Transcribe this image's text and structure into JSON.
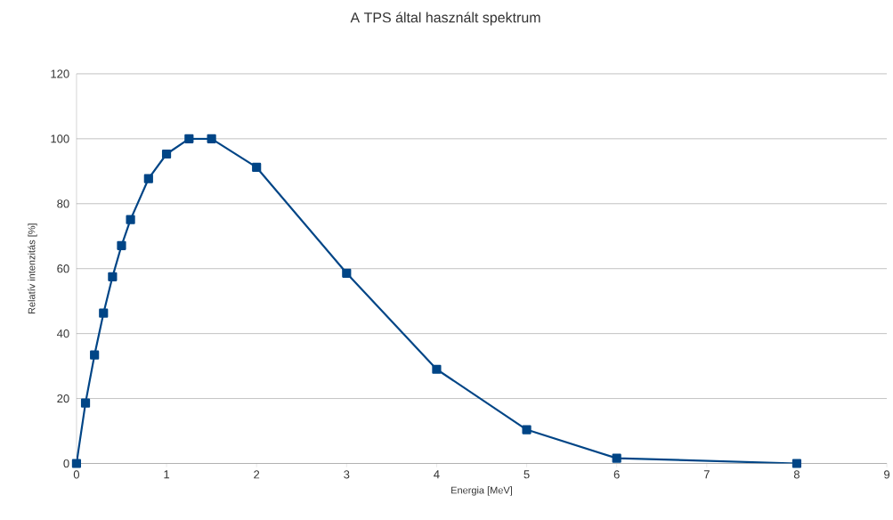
{
  "chart_data": {
    "type": "line",
    "title": "A TPS által használt spektrum",
    "xlabel": "Energia [MeV]",
    "ylabel": "Relatív intenzitás [%]",
    "x": [
      0,
      0.1,
      0.2,
      0.3,
      0.4,
      0.5,
      0.6,
      0.8,
      1.0,
      1.25,
      1.5,
      2,
      3,
      4,
      5,
      6,
      8
    ],
    "series": [
      {
        "color": "#004586",
        "values": [
          0,
          18.6,
          33.4,
          46.3,
          57.5,
          67.1,
          75.1,
          87.7,
          95.3,
          100,
          100,
          91.2,
          58.6,
          29.0,
          10.4,
          1.6,
          0
        ]
      }
    ],
    "xlim": [
      0,
      9
    ],
    "xticks": [
      0,
      1,
      2,
      3,
      4,
      5,
      6,
      7,
      8,
      9
    ],
    "ylim": [
      0,
      120
    ],
    "yticks": [
      0,
      20,
      40,
      60,
      80,
      100,
      120
    ],
    "grid": "y",
    "marker": "square",
    "line_style": "solid"
  }
}
